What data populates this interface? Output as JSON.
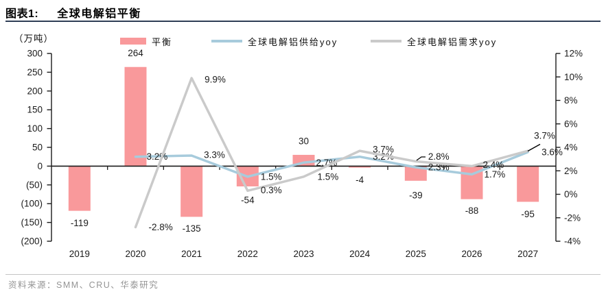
{
  "header": {
    "figure_label": "图表1:",
    "title": "全球电解铝平衡"
  },
  "left_axis": {
    "unit": "（万吨）",
    "ticks": [
      "300",
      "250",
      "200",
      "150",
      "100",
      "50",
      "0",
      "(50)",
      "(100)",
      "(150)",
      "(200)"
    ],
    "max": 300,
    "min": -200
  },
  "right_axis": {
    "ticks": [
      "12%",
      "10%",
      "8%",
      "6%",
      "4%",
      "2%",
      "0%",
      "-2%",
      "-4%"
    ],
    "max": 12,
    "min": -4
  },
  "legend": [
    {
      "type": "bar",
      "label": "平衡",
      "color": "#F9999B"
    },
    {
      "type": "line",
      "label": "全球电解铝供给yoy",
      "color": "#A7CBDC"
    },
    {
      "type": "line",
      "label": "全球电解铝需求yoy",
      "color": "#CACACA"
    }
  ],
  "chart_data": {
    "type": "bar+line combo",
    "title": "全球电解铝平衡",
    "categories": [
      "2019",
      "2020",
      "2021",
      "2022",
      "2023",
      "2024",
      "2025",
      "2026",
      "2027"
    ],
    "left_ylabel": "（万吨）",
    "left_ylim": [
      -200,
      300
    ],
    "right_ylim": [
      -4,
      12
    ],
    "grid": false,
    "legend_position": "top",
    "series": [
      {
        "name": "平衡",
        "type": "bar",
        "axis": "left",
        "values": [
          -119,
          264,
          -135,
          -54,
          30,
          -4,
          -39,
          -88,
          -95
        ],
        "labels": [
          "-119",
          "264",
          "-135",
          "-54",
          "30",
          "-4",
          "-39",
          "-88",
          "-95"
        ]
      },
      {
        "name": "全球电解铝供给yoy",
        "type": "line",
        "axis": "right",
        "values": [
          null,
          3.2,
          3.3,
          1.5,
          2.7,
          3.2,
          2.3,
          1.7,
          3.6
        ],
        "labels": [
          null,
          "3.2%",
          "3.3%",
          "1.5%",
          "2.7%",
          "3.2%",
          "2.3%",
          "1.7%",
          "3.6%"
        ]
      },
      {
        "name": "全球电解铝需求yoy",
        "type": "line",
        "axis": "right",
        "values": [
          null,
          -2.8,
          9.9,
          0.3,
          1.5,
          3.7,
          2.8,
          2.4,
          3.7
        ],
        "labels": [
          null,
          "-2.8%",
          "9.9%",
          "0.3%",
          "1.5%",
          "3.7%",
          "2.8%",
          "2.4%",
          "3.7%"
        ]
      }
    ]
  },
  "source": {
    "label": "资料来源：SMM、CRU、华泰研究"
  }
}
